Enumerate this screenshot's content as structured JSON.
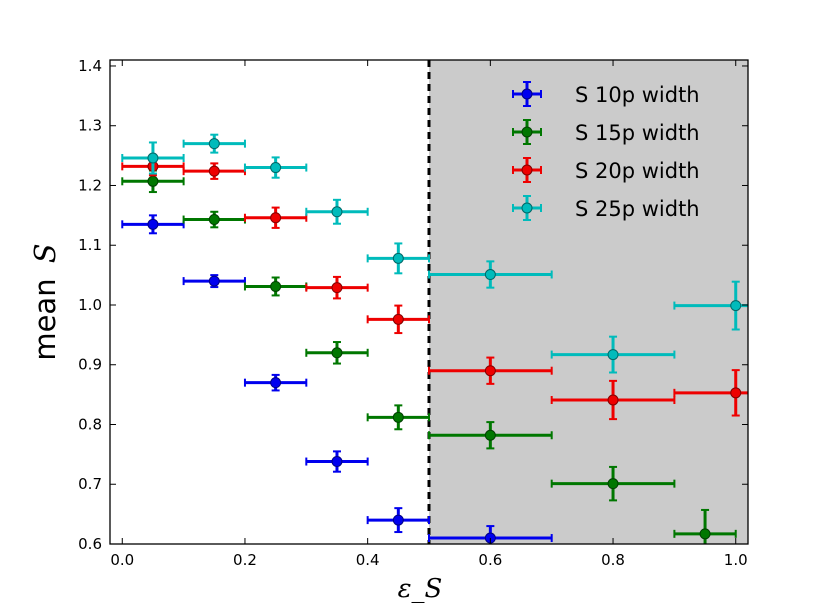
{
  "chart_data": {
    "type": "scatter",
    "title": "",
    "xlabel": "ε_S",
    "ylabel_prefix": "mean",
    "ylabel_symbol": "S",
    "xlim": [
      -0.02,
      1.02
    ],
    "ylim": [
      0.6,
      1.41
    ],
    "x_ticks": [
      0.0,
      0.2,
      0.4,
      0.6,
      0.8,
      1.0
    ],
    "x_tick_labels": [
      "0.0",
      "0.2",
      "0.4",
      "0.6",
      "0.8",
      "1.0"
    ],
    "y_ticks": [
      0.6,
      0.7,
      0.8,
      0.9,
      1.0,
      1.1,
      1.2,
      1.3,
      1.4
    ],
    "y_tick_labels": [
      "0.6",
      "0.7",
      "0.8",
      "0.9",
      "1.0",
      "1.1",
      "1.2",
      "1.3",
      "1.4"
    ],
    "threshold_x": 0.5,
    "shaded_region": [
      0.5,
      1.02
    ],
    "legend_position": "upper-right",
    "series": [
      {
        "name": "S 10p width",
        "color": "#0000ee",
        "points": [
          {
            "x": 0.05,
            "y": 1.135,
            "xerr": 0.05,
            "yerr": 0.015
          },
          {
            "x": 0.15,
            "y": 1.04,
            "xerr": 0.05,
            "yerr": 0.01
          },
          {
            "x": 0.25,
            "y": 0.87,
            "xerr": 0.05,
            "yerr": 0.013
          },
          {
            "x": 0.35,
            "y": 0.738,
            "xerr": 0.05,
            "yerr": 0.017
          },
          {
            "x": 0.45,
            "y": 0.64,
            "xerr": 0.05,
            "yerr": 0.02
          },
          {
            "x": 0.6,
            "y": 0.61,
            "xerr": 0.1,
            "yerr": 0.02
          }
        ]
      },
      {
        "name": "S 15p width",
        "color": "#007700",
        "points": [
          {
            "x": 0.05,
            "y": 1.207,
            "xerr": 0.05,
            "yerr": 0.018
          },
          {
            "x": 0.15,
            "y": 1.143,
            "xerr": 0.05,
            "yerr": 0.013
          },
          {
            "x": 0.25,
            "y": 1.031,
            "xerr": 0.05,
            "yerr": 0.015
          },
          {
            "x": 0.35,
            "y": 0.92,
            "xerr": 0.05,
            "yerr": 0.018
          },
          {
            "x": 0.45,
            "y": 0.812,
            "xerr": 0.05,
            "yerr": 0.02
          },
          {
            "x": 0.6,
            "y": 0.782,
            "xerr": 0.1,
            "yerr": 0.022
          },
          {
            "x": 0.8,
            "y": 0.701,
            "xerr": 0.1,
            "yerr": 0.028
          },
          {
            "x": 0.95,
            "y": 0.617,
            "xerr": 0.05,
            "yerr": 0.04
          }
        ]
      },
      {
        "name": "S 20p width",
        "color": "#ee0000",
        "points": [
          {
            "x": 0.05,
            "y": 1.232,
            "xerr": 0.05,
            "yerr": 0.015
          },
          {
            "x": 0.15,
            "y": 1.224,
            "xerr": 0.05,
            "yerr": 0.013
          },
          {
            "x": 0.25,
            "y": 1.146,
            "xerr": 0.05,
            "yerr": 0.017
          },
          {
            "x": 0.35,
            "y": 1.029,
            "xerr": 0.05,
            "yerr": 0.018
          },
          {
            "x": 0.45,
            "y": 0.976,
            "xerr": 0.05,
            "yerr": 0.023
          },
          {
            "x": 0.6,
            "y": 0.89,
            "xerr": 0.1,
            "yerr": 0.022
          },
          {
            "x": 0.8,
            "y": 0.841,
            "xerr": 0.1,
            "yerr": 0.032
          },
          {
            "x": 1.0,
            "y": 0.853,
            "xerr": 0.1,
            "yerr": 0.038
          }
        ]
      },
      {
        "name": "S 25p width",
        "color": "#00bbbb",
        "points": [
          {
            "x": 0.05,
            "y": 1.246,
            "xerr": 0.05,
            "yerr": 0.026
          },
          {
            "x": 0.15,
            "y": 1.27,
            "xerr": 0.05,
            "yerr": 0.015
          },
          {
            "x": 0.25,
            "y": 1.23,
            "xerr": 0.05,
            "yerr": 0.017
          },
          {
            "x": 0.35,
            "y": 1.156,
            "xerr": 0.05,
            "yerr": 0.02
          },
          {
            "x": 0.45,
            "y": 1.078,
            "xerr": 0.05,
            "yerr": 0.025
          },
          {
            "x": 0.6,
            "y": 1.051,
            "xerr": 0.1,
            "yerr": 0.022
          },
          {
            "x": 0.8,
            "y": 0.917,
            "xerr": 0.1,
            "yerr": 0.03
          },
          {
            "x": 1.0,
            "y": 0.999,
            "xerr": 0.1,
            "yerr": 0.04
          }
        ]
      }
    ]
  }
}
